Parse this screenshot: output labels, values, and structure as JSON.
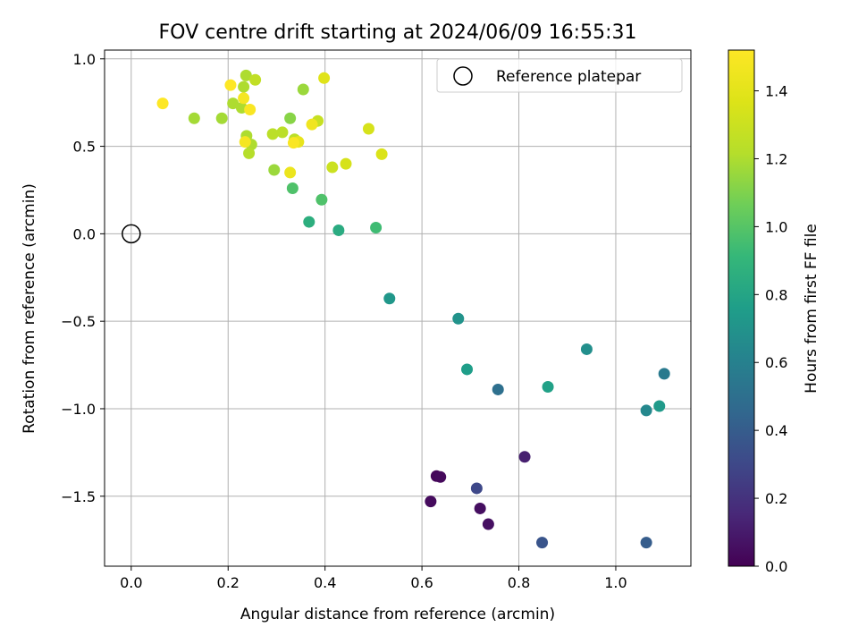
{
  "chart_data": {
    "type": "scatter",
    "title": "FOV centre drift starting at 2024/06/09 16:55:31",
    "xlabel": "Angular distance from reference (arcmin)",
    "ylabel": "Rotation from reference (arcmin)",
    "xlim": [
      -0.055,
      1.155
    ],
    "ylim": [
      -1.9,
      1.05
    ],
    "xticks": [
      0.0,
      0.2,
      0.4,
      0.6,
      0.8,
      1.0
    ],
    "xtick_labels": [
      "0.0",
      "0.2",
      "0.4",
      "0.6",
      "0.8",
      "1.0"
    ],
    "yticks": [
      -1.5,
      -1.0,
      -0.5,
      0.0,
      0.5,
      1.0
    ],
    "ytick_labels": [
      "−1.5",
      "−1.0",
      "−0.5",
      "0.0",
      "0.5",
      "1.0"
    ],
    "grid": true,
    "legend": {
      "position": "top-right",
      "entries": [
        "Reference platepar"
      ]
    },
    "reference_point": {
      "x": 0.0,
      "y": 0.0
    },
    "colorbar": {
      "label": "Hours from first FF file",
      "colormap": "viridis",
      "range": [
        0.0,
        1.52
      ],
      "ticks": [
        0.0,
        0.2,
        0.4,
        0.6,
        0.8,
        1.0,
        1.2,
        1.4
      ],
      "tick_labels": [
        "0.0",
        "0.2",
        "0.4",
        "0.6",
        "0.8",
        "1.0",
        "1.2",
        "1.4"
      ]
    },
    "series": [
      {
        "points": [
          {
            "x": 0.63,
            "y": -1.385,
            "c": 0.02
          },
          {
            "x": 0.638,
            "y": -1.39,
            "c": 0.03
          },
          {
            "x": 0.618,
            "y": -1.53,
            "c": 0.04
          },
          {
            "x": 0.72,
            "y": -1.57,
            "c": 0.05
          },
          {
            "x": 0.737,
            "y": -1.66,
            "c": 0.06
          },
          {
            "x": 0.812,
            "y": -1.275,
            "c": 0.12
          },
          {
            "x": 0.713,
            "y": -1.455,
            "c": 0.3
          },
          {
            "x": 0.848,
            "y": -1.765,
            "c": 0.36
          },
          {
            "x": 1.063,
            "y": -1.765,
            "c": 0.4
          },
          {
            "x": 0.757,
            "y": -0.89,
            "c": 0.5
          },
          {
            "x": 1.1,
            "y": -0.8,
            "c": 0.56
          },
          {
            "x": 1.063,
            "y": -1.01,
            "c": 0.64
          },
          {
            "x": 0.94,
            "y": -0.66,
            "c": 0.68
          },
          {
            "x": 0.675,
            "y": -0.485,
            "c": 0.7
          },
          {
            "x": 0.533,
            "y": -0.37,
            "c": 0.72
          },
          {
            "x": 1.09,
            "y": -0.985,
            "c": 0.74
          },
          {
            "x": 0.693,
            "y": -0.775,
            "c": 0.76
          },
          {
            "x": 0.86,
            "y": -0.875,
            "c": 0.78
          },
          {
            "x": 0.428,
            "y": 0.02,
            "c": 0.84
          },
          {
            "x": 0.367,
            "y": 0.068,
            "c": 0.86
          },
          {
            "x": 0.505,
            "y": 0.035,
            "c": 0.94
          },
          {
            "x": 0.333,
            "y": 0.26,
            "c": 0.98
          },
          {
            "x": 0.393,
            "y": 0.195,
            "c": 0.98
          },
          {
            "x": 0.328,
            "y": 0.66,
            "c": 1.12
          },
          {
            "x": 0.295,
            "y": 0.365,
            "c": 1.16
          },
          {
            "x": 0.355,
            "y": 0.825,
            "c": 1.16
          },
          {
            "x": 0.13,
            "y": 0.66,
            "c": 1.18
          },
          {
            "x": 0.187,
            "y": 0.66,
            "c": 1.18
          },
          {
            "x": 0.21,
            "y": 0.745,
            "c": 1.2
          },
          {
            "x": 0.228,
            "y": 0.72,
            "c": 1.2
          },
          {
            "x": 0.232,
            "y": 0.84,
            "c": 1.2
          },
          {
            "x": 0.237,
            "y": 0.905,
            "c": 1.2
          },
          {
            "x": 0.238,
            "y": 0.56,
            "c": 1.2
          },
          {
            "x": 0.248,
            "y": 0.51,
            "c": 1.2
          },
          {
            "x": 0.243,
            "y": 0.46,
            "c": 1.22
          },
          {
            "x": 0.292,
            "y": 0.57,
            "c": 1.24
          },
          {
            "x": 0.312,
            "y": 0.58,
            "c": 1.24
          },
          {
            "x": 0.337,
            "y": 0.54,
            "c": 1.24
          },
          {
            "x": 0.256,
            "y": 0.88,
            "c": 1.26
          },
          {
            "x": 0.385,
            "y": 0.645,
            "c": 1.28
          },
          {
            "x": 0.415,
            "y": 0.38,
            "c": 1.3
          },
          {
            "x": 0.443,
            "y": 0.4,
            "c": 1.34
          },
          {
            "x": 0.49,
            "y": 0.6,
            "c": 1.34
          },
          {
            "x": 0.517,
            "y": 0.455,
            "c": 1.36
          },
          {
            "x": 0.398,
            "y": 0.89,
            "c": 1.38
          },
          {
            "x": 0.345,
            "y": 0.525,
            "c": 1.42
          },
          {
            "x": 0.328,
            "y": 0.35,
            "c": 1.44
          },
          {
            "x": 0.373,
            "y": 0.625,
            "c": 1.46
          },
          {
            "x": 0.235,
            "y": 0.525,
            "c": 1.48
          },
          {
            "x": 0.232,
            "y": 0.775,
            "c": 1.48
          },
          {
            "x": 0.245,
            "y": 0.71,
            "c": 1.5
          },
          {
            "x": 0.335,
            "y": 0.52,
            "c": 1.5
          },
          {
            "x": 0.065,
            "y": 0.745,
            "c": 1.52
          },
          {
            "x": 0.205,
            "y": 0.85,
            "c": 1.52
          }
        ]
      }
    ]
  }
}
